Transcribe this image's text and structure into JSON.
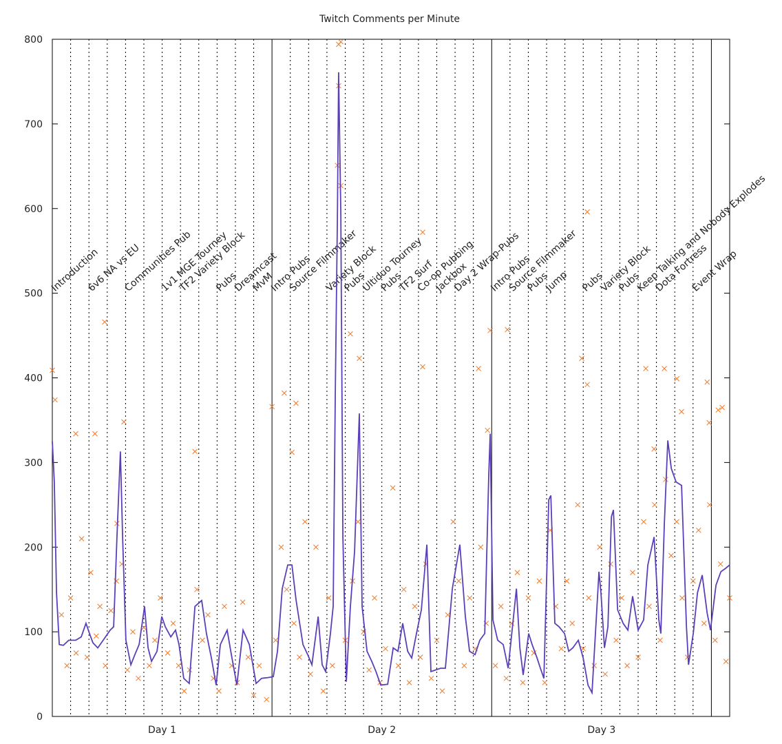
{
  "chart_data": {
    "type": "line",
    "title": "Twitch Comments per Minute",
    "xlim": [
      0,
      37
    ],
    "ylim": [
      0,
      800
    ],
    "yticks": [
      0,
      100,
      200,
      300,
      400,
      500,
      600,
      700,
      800
    ],
    "xticks": [
      {
        "value": 6,
        "label": "Day 1"
      },
      {
        "value": 18,
        "label": "Day 2"
      },
      {
        "value": 30,
        "label": "Day 3"
      }
    ],
    "major_grid": [
      12,
      24,
      36
    ],
    "minor_grid": [
      1,
      2,
      3,
      4,
      5,
      6,
      7,
      8,
      9,
      10,
      11,
      13,
      14,
      15,
      16,
      17,
      18,
      19,
      20,
      21,
      22,
      23,
      25,
      26,
      27,
      28,
      29,
      30,
      31,
      32,
      33,
      34,
      35
    ],
    "annotations": [
      {
        "x": 0,
        "label": "Introduction"
      },
      {
        "x": 2,
        "label": "6v6 NA vs EU"
      },
      {
        "x": 4,
        "label": "Communities Pub"
      },
      {
        "x": 6,
        "label": "1v1 MGE Tourney"
      },
      {
        "x": 7,
        "label": "TF2 Variety Block"
      },
      {
        "x": 9,
        "label": "Pubs"
      },
      {
        "x": 10,
        "label": "Dreamcast"
      },
      {
        "x": 11,
        "label": "MvM"
      },
      {
        "x": 12,
        "label": "Intro Pubs"
      },
      {
        "x": 13,
        "label": "Source Filmmaker"
      },
      {
        "x": 15,
        "label": "Variety Block"
      },
      {
        "x": 16,
        "label": "Pubs"
      },
      {
        "x": 17,
        "label": "Ultiduo Tourney"
      },
      {
        "x": 18,
        "label": "Pubs"
      },
      {
        "x": 19,
        "label": "TF2 Surf"
      },
      {
        "x": 20,
        "label": "Co-op Pubbing"
      },
      {
        "x": 21,
        "label": "Jackbox"
      },
      {
        "x": 22,
        "label": "Day 2 Wrap-Pubs"
      },
      {
        "x": 24,
        "label": "Intro Pubs"
      },
      {
        "x": 25,
        "label": "Source Filmmaker"
      },
      {
        "x": 26,
        "label": "Pubs"
      },
      {
        "x": 27,
        "label": "Jump"
      },
      {
        "x": 29,
        "label": "Pubs"
      },
      {
        "x": 30,
        "label": "Variety Block"
      },
      {
        "x": 31,
        "label": "Pubs"
      },
      {
        "x": 32,
        "label": "Keep Talking and Nobody Explodes"
      },
      {
        "x": 33,
        "label": "Dota Fortress"
      },
      {
        "x": 35,
        "label": "Event Wrap"
      }
    ],
    "line": {
      "color": "#5b3fb8",
      "x": [
        0,
        0.11,
        0.23,
        0.38,
        0.6,
        0.9,
        1.28,
        1.58,
        1.84,
        2.03,
        2.22,
        2.48,
        2.78,
        3.16,
        3.35,
        3.53,
        3.72,
        3.84,
        4.02,
        4.29,
        4.51,
        4.74,
        5.04,
        5.23,
        5.42,
        5.72,
        5.98,
        6.17,
        6.47,
        6.73,
        6.92,
        7.18,
        7.48,
        7.79,
        8.16,
        8.42,
        8.69,
        8.95,
        9.18,
        9.55,
        9.78,
        10.08,
        10.42,
        10.76,
        11.13,
        11.43,
        11.81,
        12.07,
        12.3,
        12.56,
        12.86,
        13.09,
        13.31,
        13.69,
        13.95,
        14.18,
        14.52,
        14.74,
        14.93,
        15.19,
        15.34,
        15.46,
        15.57,
        15.64,
        15.76,
        15.87,
        16.06,
        16.28,
        16.51,
        16.77,
        16.92,
        17.19,
        17.45,
        17.68,
        17.94,
        18.32,
        18.62,
        18.88,
        19.14,
        19.41,
        19.63,
        19.89,
        20.16,
        20.46,
        20.68,
        20.95,
        21.21,
        21.47,
        21.85,
        22.26,
        22.56,
        22.79,
        23.09,
        23.35,
        23.62,
        23.84,
        23.92,
        24.07,
        24.33,
        24.63,
        24.9,
        25.35,
        25.54,
        25.72,
        26.02,
        26.21,
        26.48,
        26.66,
        26.85,
        27.12,
        27.23,
        27.45,
        27.68,
        27.98,
        28.21,
        28.43,
        28.73,
        29.0,
        29.26,
        29.48,
        29.71,
        29.86,
        29.97,
        30.16,
        30.35,
        30.54,
        30.65,
        30.88,
        31.18,
        31.44,
        31.7,
        32.0,
        32.3,
        32.53,
        32.87,
        33.13,
        33.24,
        33.43,
        33.62,
        33.81,
        34.07,
        34.37,
        34.64,
        34.75,
        35.01,
        35.24,
        35.5,
        35.77,
        35.95,
        36.25,
        36.52,
        36.78,
        37.0
      ],
      "y": [
        325,
        277,
        146,
        85,
        84,
        90,
        90,
        94,
        110,
        98,
        87,
        81,
        90,
        102,
        106,
        212,
        313,
        212,
        90,
        61,
        73,
        85,
        130,
        81,
        65,
        77,
        118,
        106,
        94,
        102,
        85,
        45,
        39,
        130,
        137,
        98,
        69,
        37,
        85,
        102,
        73,
        37,
        102,
        85,
        39,
        45,
        46,
        47,
        77,
        151,
        179,
        179,
        138,
        85,
        73,
        61,
        118,
        61,
        53,
        98,
        130,
        391,
        586,
        761,
        594,
        212,
        41,
        130,
        195,
        358,
        130,
        77,
        65,
        53,
        37,
        38,
        81,
        77,
        110,
        77,
        69,
        98,
        126,
        203,
        53,
        55,
        57,
        57,
        151,
        203,
        118,
        77,
        73,
        90,
        98,
        285,
        334,
        114,
        90,
        85,
        57,
        151,
        81,
        49,
        98,
        85,
        69,
        57,
        45,
        256,
        261,
        110,
        106,
        98,
        77,
        81,
        90,
        69,
        37,
        28,
        114,
        171,
        146,
        81,
        106,
        236,
        244,
        126,
        110,
        102,
        142,
        102,
        114,
        179,
        212,
        114,
        98,
        228,
        326,
        293,
        277,
        273,
        106,
        61,
        98,
        146,
        167,
        122,
        102,
        155,
        171,
        175,
        179
      ]
    },
    "points": {
      "color": "#f07a2a",
      "x": [
        0,
        0.15,
        2.86,
        1.28,
        2.33,
        3.91,
        3.53,
        7.79,
        12,
        12.67,
        13.31,
        13.09,
        15.64,
        15.76,
        15.64,
        15.76,
        15.57,
        16.28,
        16.77,
        20.23,
        20.23,
        23.28,
        23.92,
        23.77,
        24.86,
        29.22,
        28.92,
        29.22,
        32.42,
        33.43,
        34.11,
        35.77,
        36.37,
        36.59,
        35.88,
        32.87,
        34.37,
        0.5,
        0.8,
        1.0,
        1.3,
        1.6,
        1.9,
        2.1,
        2.4,
        2.6,
        2.9,
        3.2,
        3.5,
        3.8,
        4.1,
        4.4,
        4.7,
        5.0,
        5.3,
        5.6,
        5.9,
        6.3,
        6.6,
        6.9,
        7.2,
        7.5,
        7.9,
        8.2,
        8.5,
        8.8,
        9.1,
        9.4,
        9.8,
        10.1,
        10.4,
        10.7,
        11.0,
        11.3,
        11.7,
        12.2,
        12.5,
        12.8,
        13.2,
        13.5,
        13.8,
        14.1,
        14.4,
        14.8,
        15.1,
        15.3,
        16.0,
        16.4,
        16.7,
        17.0,
        17.3,
        17.6,
        17.9,
        18.2,
        18.6,
        18.9,
        19.2,
        19.5,
        19.8,
        20.1,
        20.4,
        20.7,
        21.0,
        21.3,
        21.6,
        21.9,
        22.2,
        22.5,
        22.8,
        23.1,
        23.4,
        23.7,
        24.2,
        24.5,
        24.8,
        25.1,
        25.4,
        25.7,
        26.0,
        26.3,
        26.6,
        26.9,
        27.2,
        27.5,
        27.8,
        28.1,
        28.4,
        28.7,
        29.0,
        29.3,
        29.6,
        29.9,
        30.2,
        30.5,
        30.8,
        31.1,
        31.4,
        31.7,
        32.0,
        32.3,
        32.6,
        32.9,
        33.2,
        33.5,
        33.8,
        34.1,
        34.4,
        34.7,
        35.0,
        35.3,
        35.6,
        35.9,
        36.2,
        36.5,
        36.8,
        37.0
      ],
      "y": [
        409,
        374,
        466,
        334,
        334,
        348,
        228,
        313,
        366,
        382,
        370,
        312,
        794,
        797,
        745,
        627,
        651,
        452,
        423,
        413,
        572,
        411,
        456,
        338,
        457,
        596,
        423,
        392,
        411,
        411,
        399,
        395,
        362,
        365,
        347,
        316,
        360,
        120,
        60,
        140,
        75,
        210,
        70,
        170,
        95,
        130,
        60,
        125,
        160,
        180,
        55,
        100,
        45,
        105,
        60,
        90,
        140,
        75,
        110,
        60,
        30,
        55,
        150,
        90,
        120,
        45,
        30,
        130,
        60,
        40,
        135,
        70,
        25,
        60,
        20,
        90,
        200,
        150,
        110,
        70,
        230,
        50,
        200,
        30,
        140,
        60,
        90,
        160,
        230,
        100,
        55,
        140,
        40,
        80,
        270,
        60,
        150,
        40,
        130,
        70,
        180,
        45,
        90,
        30,
        120,
        230,
        160,
        60,
        140,
        80,
        200,
        110,
        60,
        130,
        45,
        110,
        170,
        40,
        140,
        75,
        160,
        40,
        220,
        130,
        80,
        160,
        110,
        250,
        80,
        140,
        60,
        200,
        50,
        180,
        90,
        140,
        60,
        170,
        70,
        230,
        130,
        250,
        90,
        280,
        190,
        230,
        140,
        70,
        160,
        220,
        110,
        250,
        90,
        180,
        65,
        140
      ]
    }
  }
}
